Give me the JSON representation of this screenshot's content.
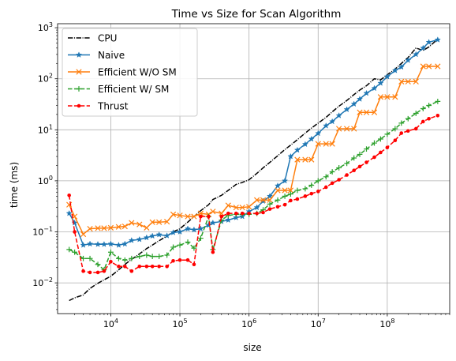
{
  "chart_data": {
    "type": "line",
    "title": "Time vs Size for Scan Algorithm",
    "xlabel": "size",
    "ylabel": "time (ms)",
    "xscale": "log",
    "yscale": "log",
    "xlim": [
      1700,
      800000000
    ],
    "ylim": [
      0.0025,
      1200
    ],
    "grid": true,
    "legend_position": "top-left",
    "x_ticks": [
      {
        "value": 10000,
        "base": "10",
        "exp": "4"
      },
      {
        "value": 100000,
        "base": "10",
        "exp": "5"
      },
      {
        "value": 1000000,
        "base": "10",
        "exp": "6"
      },
      {
        "value": 10000000,
        "base": "10",
        "exp": "7"
      },
      {
        "value": 100000000,
        "base": "10",
        "exp": "8"
      }
    ],
    "y_ticks": [
      {
        "value": 0.01,
        "base": "10",
        "exp": "−2"
      },
      {
        "value": 0.1,
        "base": "10",
        "exp": "−1"
      },
      {
        "value": 1,
        "base": "10",
        "exp": "0"
      },
      {
        "value": 10,
        "base": "10",
        "exp": "1"
      },
      {
        "value": 100,
        "base": "10",
        "exp": "2"
      },
      {
        "value": 1000,
        "base": "10",
        "exp": "3"
      }
    ],
    "x": [
      2500,
      3000,
      4000,
      5000,
      6500,
      8000,
      10000,
      13000,
      16000,
      20000,
      26000,
      33000,
      40000,
      50000,
      65000,
      80000,
      100000,
      130000,
      160000,
      200000,
      260000,
      300000,
      400000,
      500000,
      650000,
      800000,
      1000000,
      1300000,
      1600000,
      2000000,
      2600000,
      3300000,
      4000000,
      5000000,
      6500000,
      8000000,
      10000000,
      13000000,
      16000000,
      20000000,
      26000000,
      33000000,
      40000000,
      50000000,
      65000000,
      80000000,
      100000000,
      130000000,
      160000000,
      200000000,
      260000000,
      330000000,
      400000000,
      536870912
    ],
    "series": [
      {
        "name": "CPU",
        "color": "#000000",
        "dash": "dashdot",
        "marker": "none",
        "values": [
          0.0045,
          0.0051,
          0.0058,
          0.0078,
          0.0098,
          0.0115,
          0.0135,
          0.018,
          0.023,
          0.029,
          0.037,
          0.047,
          0.055,
          0.067,
          0.083,
          0.1,
          0.115,
          0.155,
          0.2,
          0.26,
          0.34,
          0.43,
          0.52,
          0.65,
          0.85,
          0.93,
          1.05,
          1.4,
          1.8,
          2.3,
          3.1,
          4.1,
          5.0,
          6.4,
          8.6,
          10.8,
          13.5,
          17.5,
          22.5,
          29.0,
          37.5,
          49,
          60,
          73,
          100,
          95,
          120,
          155,
          200,
          260,
          400,
          360,
          420,
          600
        ]
      },
      {
        "name": "Naive",
        "color": "#1f77b4",
        "dash": "solid",
        "marker": "star",
        "values": [
          0.23,
          0.15,
          0.055,
          0.058,
          0.057,
          0.057,
          0.058,
          0.055,
          0.058,
          0.068,
          0.071,
          0.077,
          0.083,
          0.088,
          0.084,
          0.097,
          0.1,
          0.115,
          0.11,
          0.115,
          0.135,
          0.15,
          0.16,
          0.17,
          0.19,
          0.2,
          0.25,
          0.3,
          0.4,
          0.5,
          0.8,
          1.0,
          3.0,
          4.0,
          5.2,
          6.6,
          8.5,
          12,
          14.5,
          19,
          25,
          32,
          40,
          52,
          65,
          82,
          110,
          145,
          170,
          230,
          300,
          400,
          520,
          580
        ]
      },
      {
        "name": "Efficient W/O SM",
        "color": "#ff7f0e",
        "dash": "solid",
        "marker": "x",
        "values": [
          0.34,
          0.2,
          0.09,
          0.115,
          0.118,
          0.118,
          0.12,
          0.125,
          0.128,
          0.15,
          0.14,
          0.12,
          0.155,
          0.155,
          0.158,
          0.22,
          0.21,
          0.2,
          0.2,
          0.23,
          0.22,
          0.25,
          0.23,
          0.33,
          0.3,
          0.3,
          0.31,
          0.42,
          0.42,
          0.42,
          0.65,
          0.65,
          0.65,
          2.6,
          2.6,
          2.6,
          5.3,
          5.3,
          5.3,
          10.5,
          10.5,
          10.5,
          22,
          22,
          22,
          44,
          44,
          44,
          88,
          88,
          88,
          175,
          175,
          175
        ]
      },
      {
        "name": "Efficient W/ SM",
        "color": "#2ca02c",
        "dash": "dashed",
        "marker": "plus",
        "values": [
          0.045,
          0.04,
          0.03,
          0.03,
          0.023,
          0.018,
          0.04,
          0.03,
          0.028,
          0.03,
          0.033,
          0.035,
          0.033,
          0.033,
          0.035,
          0.05,
          0.055,
          0.063,
          0.048,
          0.075,
          0.2,
          0.045,
          0.17,
          0.21,
          0.22,
          0.22,
          0.22,
          0.23,
          0.27,
          0.35,
          0.42,
          0.5,
          0.55,
          0.65,
          0.7,
          0.82,
          1.0,
          1.2,
          1.5,
          1.8,
          2.2,
          2.8,
          3.3,
          4.2,
          5.5,
          6.6,
          8.2,
          10.5,
          13.5,
          16.5,
          21,
          26,
          30,
          36
        ]
      },
      {
        "name": "Thrust",
        "color": "#ff0000",
        "dash": "dashed",
        "marker": "dot",
        "values": [
          0.52,
          0.1,
          0.017,
          0.016,
          0.016,
          0.017,
          0.026,
          0.021,
          0.021,
          0.017,
          0.021,
          0.021,
          0.021,
          0.021,
          0.021,
          0.027,
          0.028,
          0.028,
          0.023,
          0.2,
          0.2,
          0.04,
          0.2,
          0.23,
          0.23,
          0.23,
          0.23,
          0.23,
          0.24,
          0.28,
          0.31,
          0.34,
          0.41,
          0.44,
          0.5,
          0.56,
          0.62,
          0.75,
          0.9,
          1.05,
          1.3,
          1.6,
          1.9,
          2.3,
          2.9,
          3.6,
          4.5,
          6.2,
          8.6,
          9.5,
          10.5,
          14.5,
          16.5,
          19
        ]
      }
    ]
  }
}
